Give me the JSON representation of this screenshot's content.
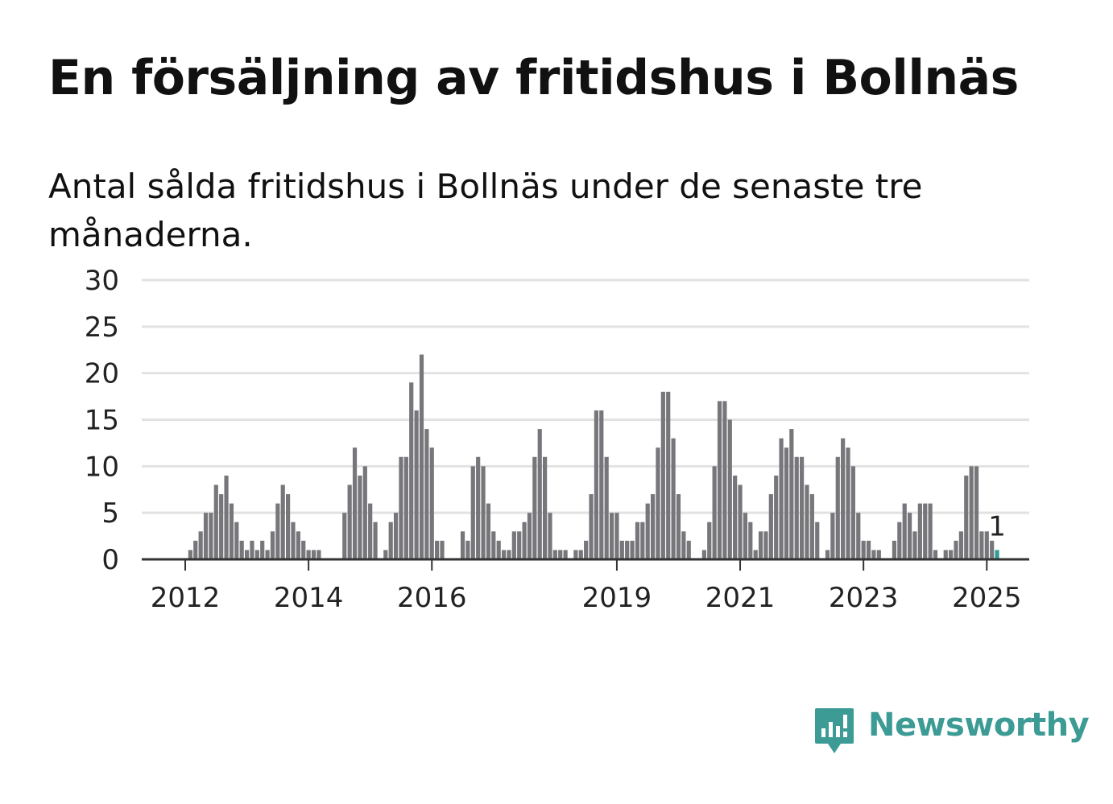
{
  "title": "En försäljning av fritidshus i Bollnäs",
  "subtitle": "Antal sålda fritidshus i Bollnäs under de senaste tre månaderna.",
  "brand": {
    "name": "Newsworthy",
    "color": "#3d9b95",
    "icon": "newsworthy-logo-icon"
  },
  "chart_data": {
    "type": "bar",
    "title": "En försäljning av fritidshus i Bollnäs",
    "subtitle": "Antal sålda fritidshus i Bollnäs under de senaste tre månaderna.",
    "x_start": "2011-05",
    "x_frequency": "monthly",
    "x_end": "2025-01",
    "x_ticks": [
      "2012",
      "2014",
      "2016",
      "2019",
      "2021",
      "2023",
      "2025"
    ],
    "y_ticks": [
      0,
      5,
      10,
      15,
      20,
      25,
      30
    ],
    "ylim": [
      0,
      30
    ],
    "grid": true,
    "bar_color": "#77767b",
    "highlight_color": "#2d9c96",
    "highlight_label": "1",
    "values": [
      0,
      0,
      0,
      0,
      0,
      0,
      0,
      0,
      0,
      1,
      2,
      3,
      5,
      5,
      8,
      7,
      9,
      6,
      4,
      2,
      1,
      2,
      1,
      2,
      1,
      3,
      6,
      8,
      7,
      4,
      3,
      2,
      1,
      1,
      1,
      0,
      0,
      0,
      0,
      5,
      8,
      12,
      9,
      10,
      6,
      4,
      0,
      1,
      4,
      5,
      11,
      11,
      19,
      16,
      22,
      14,
      12,
      2,
      2,
      0,
      0,
      0,
      3,
      2,
      10,
      11,
      10,
      6,
      3,
      2,
      1,
      1,
      3,
      3,
      4,
      5,
      11,
      14,
      11,
      5,
      1,
      1,
      1,
      0,
      1,
      1,
      2,
      7,
      16,
      16,
      11,
      5,
      5,
      2,
      2,
      2,
      4,
      4,
      6,
      7,
      12,
      18,
      18,
      13,
      7,
      3,
      2,
      0,
      0,
      1,
      4,
      10,
      17,
      17,
      15,
      9,
      8,
      5,
      4,
      1,
      3,
      3,
      7,
      9,
      13,
      12,
      14,
      11,
      11,
      8,
      7,
      4,
      0,
      1,
      5,
      11,
      13,
      12,
      10,
      5,
      2,
      2,
      1,
      1,
      0,
      0,
      2,
      4,
      6,
      5,
      3,
      6,
      6,
      6,
      1,
      0,
      1,
      1,
      2,
      3,
      9,
      10,
      10,
      3,
      3,
      2,
      1
    ]
  }
}
